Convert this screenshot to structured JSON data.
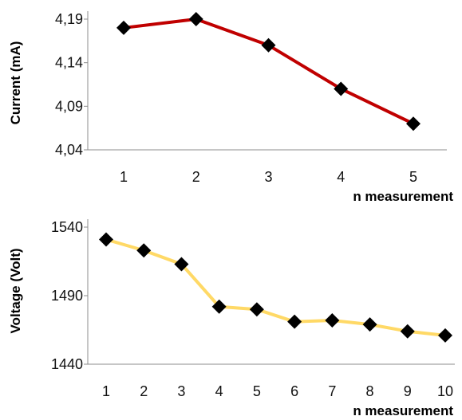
{
  "chart_data": [
    {
      "type": "line",
      "title": "",
      "xlabel": "n measurement",
      "ylabel": "Current  (mA)",
      "categories": [
        "1",
        "2",
        "3",
        "4",
        "5"
      ],
      "series": [
        {
          "values": [
            4.18,
            4.19,
            4.16,
            4.11,
            4.07
          ],
          "color": "#c00000",
          "marker": "diamond"
        }
      ],
      "ylim": [
        4.04,
        4.19
      ],
      "yticks": [
        "4,04",
        "4,09",
        "4,14",
        "4,19"
      ],
      "ytick_values": [
        4.04,
        4.09,
        4.14,
        4.19
      ],
      "grid": false,
      "legend": "none"
    },
    {
      "type": "line",
      "title": "",
      "xlabel": "n measurement",
      "ylabel": "Voltage (Volt)",
      "categories": [
        "1",
        "2",
        "3",
        "4",
        "5",
        "6",
        "7",
        "8",
        "9",
        "10"
      ],
      "series": [
        {
          "values": [
            1531,
            1523,
            1513,
            1482,
            1480,
            1471,
            1472,
            1469,
            1464,
            1461
          ],
          "color": "#ffd966",
          "marker": "diamond"
        }
      ],
      "ylim": [
        1440,
        1540
      ],
      "yticks": [
        "1440",
        "1490",
        "1540"
      ],
      "ytick_values": [
        1440,
        1490,
        1540
      ],
      "grid": false,
      "legend": "none"
    }
  ]
}
